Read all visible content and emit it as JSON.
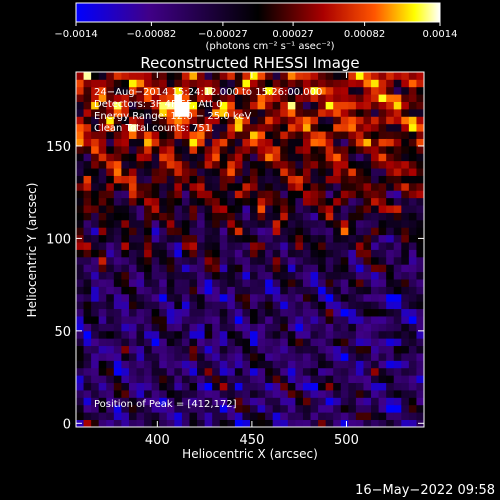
{
  "colorbar": {
    "ticks": [
      -0.0014,
      -0.00082,
      -0.00027,
      0.00027,
      0.00082,
      0.0014
    ],
    "tick_labels": [
      "−0.0014",
      "−0.00082",
      "−0.00027",
      "0.00027",
      "0.00082",
      "0.0014"
    ],
    "unit_label": "(photons cm⁻² s⁻¹ asec⁻²)",
    "range": [
      -0.0014,
      0.0014
    ],
    "colormap": [
      "#0000ff",
      "#400088",
      "#000000",
      "#aa0000",
      "#ff5500",
      "#ffff00",
      "#ffffff"
    ]
  },
  "chart_data": {
    "type": "heatmap",
    "title": "Reconstructed RHESSI Image",
    "xlabel": "Heliocentric X (arcsec)",
    "ylabel": "Heliocentric Y (arcsec)",
    "xlim": [
      357,
      541
    ],
    "ylim": [
      -2,
      190
    ],
    "x_ticks": [
      400,
      450,
      500
    ],
    "y_ticks": [
      0,
      50,
      100,
      150
    ],
    "annotations": {
      "time_range": "24−Aug−2014 15:24:12.000 to 15:26:00.000",
      "detectors": "Detectors: 3F 4F 5F, Att 0",
      "energy": "Energy Range: 12.0 − 25.0 keV",
      "clean": "Clean     Total counts: 751.",
      "peak": "Position of Peak = [412,172]"
    },
    "peak_position": [
      412,
      172
    ],
    "pixel_size_arcsec": 4
  },
  "footer": {
    "timestamp": "16−May−2022 09:58"
  }
}
